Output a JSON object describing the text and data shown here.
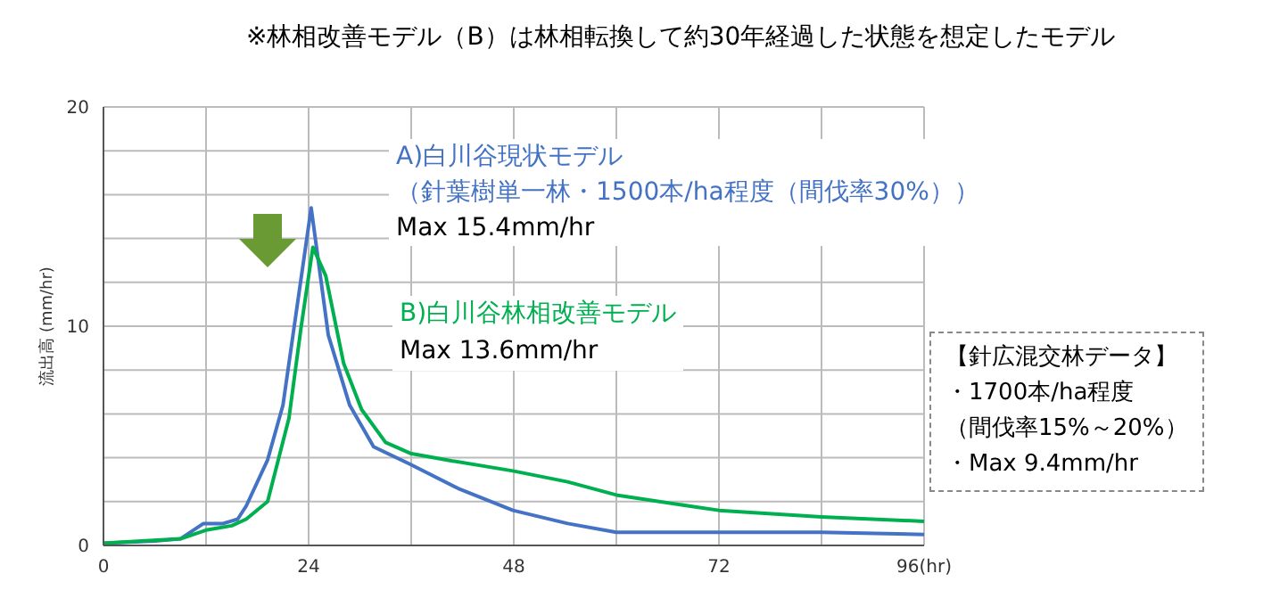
{
  "chart_data": {
    "type": "line",
    "title": "※林相改善モデル（B）は林相転換して約30年経過した状態を想定したモデル",
    "ylabel": "流出高 (mm/hr)",
    "xlim": [
      0,
      96
    ],
    "xticks": [
      0,
      {
        "value": 12,
        "label": null
      },
      24,
      {
        "value": 36,
        "label": null
      },
      48,
      {
        "value": 60,
        "label": null
      },
      72,
      {
        "value": 84,
        "label": null
      },
      {
        "value": 96,
        "label": "96(hr)"
      }
    ],
    "ylim": [
      0,
      20
    ],
    "yticks": [
      0,
      {
        "value": 2,
        "label": null
      },
      {
        "value": 4,
        "label": null
      },
      {
        "value": 6,
        "label": null
      },
      {
        "value": 8,
        "label": null
      },
      10,
      {
        "value": 12,
        "label": null
      },
      {
        "value": 14,
        "label": null
      },
      {
        "value": 16,
        "label": null
      },
      {
        "value": 18,
        "label": null
      },
      20
    ],
    "grid": true,
    "marker": "none",
    "line_style": "solid",
    "series": [
      {
        "name": "A)白川谷現状モデル",
        "color": "#4472c4",
        "x": [
          0,
          6,
          9,
          11.7,
          14,
          15.7,
          16.7,
          19.2,
          21,
          24.3,
          26.3,
          28.8,
          31.6,
          35.9,
          41.5,
          47.9,
          54.3,
          60,
          72,
          84,
          96
        ],
        "values": [
          0.1,
          0.2,
          0.3,
          1.0,
          1.0,
          1.2,
          1.8,
          3.9,
          6.4,
          15.4,
          9.6,
          6.4,
          4.5,
          3.7,
          2.6,
          1.6,
          1.0,
          0.6,
          0.6,
          0.6,
          0.5
        ]
      },
      {
        "name": "B)白川谷林相改善モデル",
        "color": "#00b050",
        "x": [
          0,
          9,
          12,
          15,
          16.7,
          19.2,
          21.7,
          23.1,
          24.5,
          26,
          28.1,
          30.2,
          33,
          35.9,
          40.1,
          47.9,
          54.3,
          60,
          68.5,
          72,
          84,
          96
        ],
        "values": [
          0.1,
          0.3,
          0.7,
          0.9,
          1.2,
          2.0,
          5.8,
          9.9,
          13.6,
          12.3,
          8.3,
          6.2,
          4.7,
          4.2,
          3.9,
          3.4,
          2.9,
          2.3,
          1.8,
          1.6,
          1.3,
          1.1
        ]
      }
    ],
    "annotations": [
      "（針葉樹単一林・1500本/ha程度（間伐率30%））",
      "Max 15.4mm/hr",
      "Max 13.6mm/hr",
      "【針広混交林データ】",
      "・1700本/ha程度",
      "（間伐率15%～20%）",
      "・Max 9.4mm/hr"
    ]
  }
}
